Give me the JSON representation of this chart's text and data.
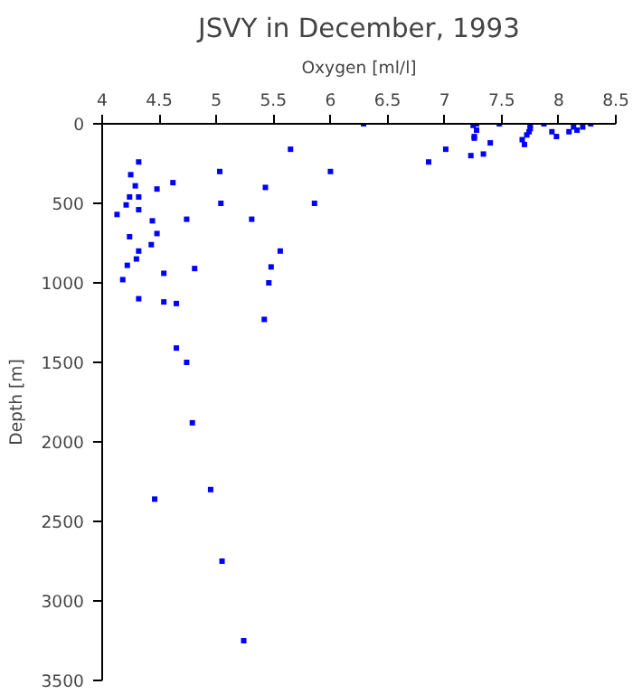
{
  "chart_data": {
    "type": "scatter",
    "title": "JSVY in December, 1993",
    "xlabel": "Oxygen [ml/l]",
    "ylabel": "Depth [m]",
    "x": [
      5.65,
      4.32,
      4.25,
      6.0,
      5.03,
      4.29,
      4.62,
      4.48,
      5.43,
      4.24,
      4.32,
      4.21,
      5.04,
      5.86,
      4.32,
      4.13,
      4.44,
      4.74,
      5.31,
      4.48,
      4.24,
      4.43,
      4.32,
      5.56,
      4.3,
      4.22,
      4.81,
      5.48,
      4.54,
      4.18,
      5.46,
      4.32,
      4.54,
      4.65,
      5.42,
      4.65,
      4.74,
      4.79,
      4.46,
      4.95,
      5.05,
      5.24,
      6.29,
      6.86,
      7.01,
      7.23,
      7.34,
      7.4,
      7.25,
      7.28,
      7.28,
      7.26,
      7.26,
      7.48,
      7.75,
      7.75,
      7.74,
      7.72,
      7.68,
      7.7,
      7.87,
      7.94,
      7.98,
      8.09,
      8.13,
      8.16,
      8.21,
      8.28
    ],
    "series": [
      {
        "color": "#0000ff",
        "values": [
          160,
          240,
          320,
          300,
          300,
          390,
          370,
          410,
          400,
          460,
          460,
          510,
          500,
          500,
          540,
          570,
          610,
          600,
          600,
          690,
          710,
          760,
          800,
          800,
          850,
          890,
          910,
          900,
          940,
          980,
          1000,
          1100,
          1120,
          1130,
          1230,
          1410,
          1500,
          1880,
          2360,
          2300,
          2750,
          3250,
          0,
          240,
          160,
          200,
          190,
          120,
          10,
          0,
          40,
          80,
          90,
          0,
          10,
          30,
          50,
          70,
          100,
          130,
          0,
          50,
          80,
          50,
          20,
          40,
          20,
          0
        ]
      }
    ],
    "marker": "square",
    "xlim": [
      4,
      8.5
    ],
    "xticks": [
      4,
      4.5,
      5,
      5.5,
      6,
      6.5,
      7,
      7.5,
      8,
      8.5
    ],
    "ylim": [
      3500,
      0
    ],
    "yticks": [
      0,
      500,
      1000,
      1500,
      2000,
      2500,
      3000,
      3500
    ],
    "grid": false
  }
}
